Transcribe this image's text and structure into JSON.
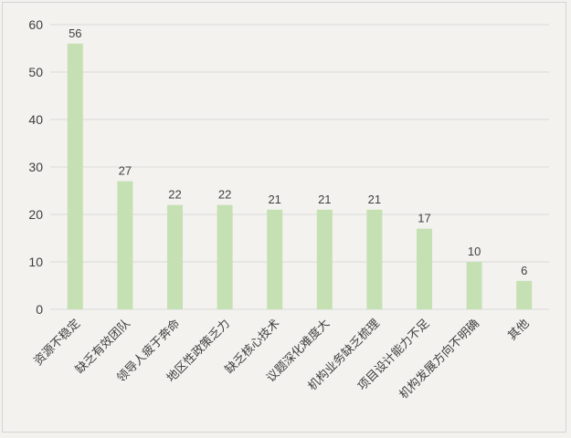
{
  "chart_data": {
    "type": "bar",
    "categories": [
      "资源不稳定",
      "缺乏有效团队",
      "领导人疲于奔命",
      "地区性政策乏力",
      "缺乏核心技术",
      "议题深化难度大",
      "机构业务缺乏梳理",
      "项目设计能力不足",
      "机构发展方向不明确",
      "其他"
    ],
    "values": [
      56,
      27,
      22,
      22,
      21,
      21,
      21,
      17,
      10,
      6
    ],
    "ylim": [
      0,
      60
    ],
    "yticks": [
      0,
      10,
      20,
      30,
      40,
      50,
      60
    ],
    "grid": true,
    "legend": "none",
    "bar_color": "#c5e0b3",
    "grid_color": "#d9d9d9",
    "background_color": "#f3f2ef"
  }
}
